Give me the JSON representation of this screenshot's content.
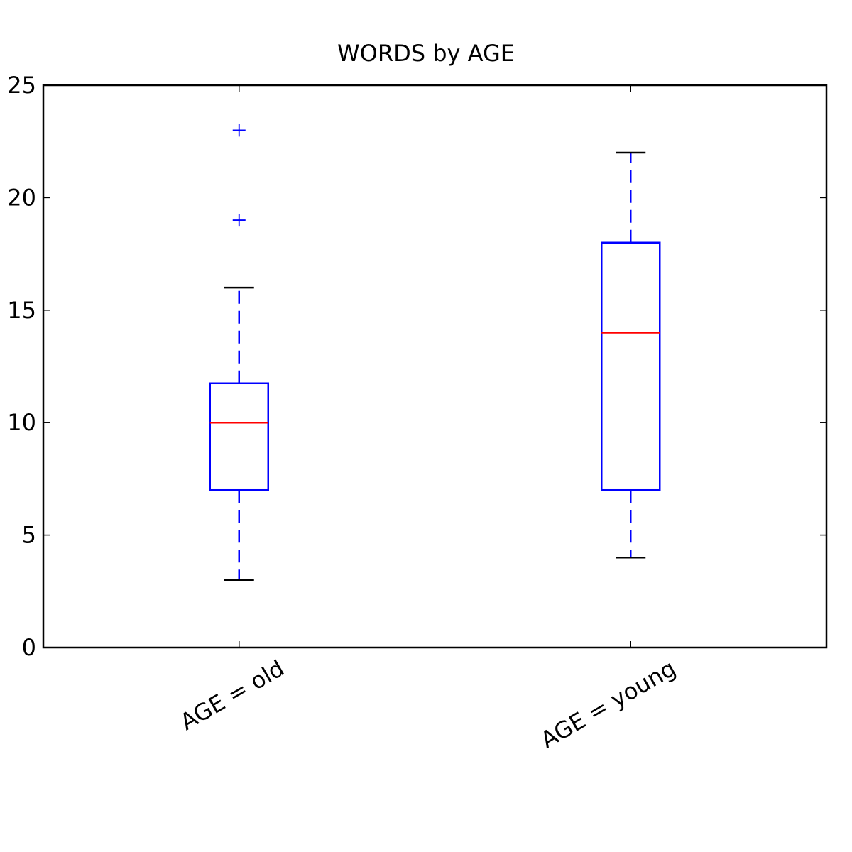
{
  "chart_data": {
    "type": "box",
    "title": "WORDS by AGE",
    "xlabel": "",
    "ylabel": "",
    "ylim": [
      0,
      25
    ],
    "yticks": [
      0,
      5,
      10,
      15,
      20,
      25
    ],
    "grid": false,
    "categories": [
      "AGE = old",
      "AGE = young"
    ],
    "boxes": [
      {
        "category": "AGE = old",
        "whisker_low": 3,
        "q1": 7,
        "median": 10,
        "q3": 11.75,
        "whisker_high": 16,
        "outliers": [
          19,
          23
        ]
      },
      {
        "category": "AGE = young",
        "whisker_low": 4,
        "q1": 7,
        "median": 14,
        "q3": 18,
        "whisker_high": 22,
        "outliers": []
      }
    ],
    "colors": {
      "box": "#0000ff",
      "median": "#ff0000",
      "whisker_cap": "#000000",
      "flier": "#0000ff",
      "axis": "#000000"
    }
  }
}
